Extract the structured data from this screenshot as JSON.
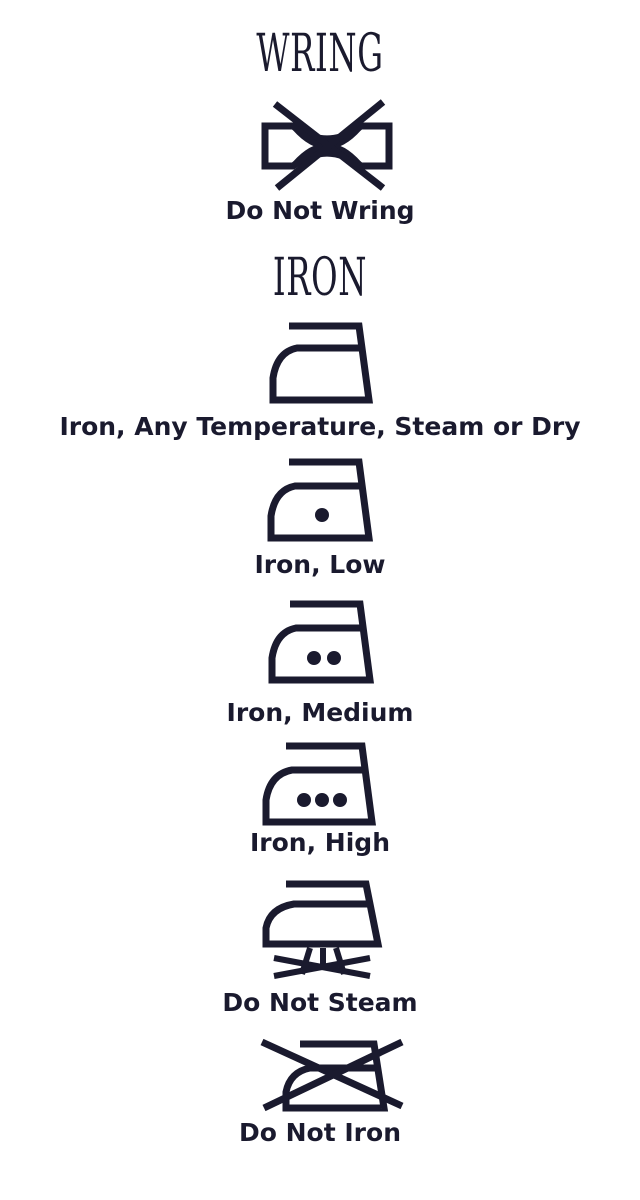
{
  "sections": {
    "wring": {
      "heading": "WRING",
      "items": [
        {
          "icon": "do-not-wring-icon",
          "label": "Do Not Wring"
        }
      ]
    },
    "iron": {
      "heading": "IRON",
      "items": [
        {
          "icon": "iron-any-temperature-icon",
          "label": "Iron, Any Temperature, Steam or Dry"
        },
        {
          "icon": "iron-low-icon",
          "label": "Iron, Low"
        },
        {
          "icon": "iron-medium-icon",
          "label": "Iron, Medium"
        },
        {
          "icon": "iron-high-icon",
          "label": "Iron, High"
        },
        {
          "icon": "do-not-steam-icon",
          "label": "Do Not Steam"
        },
        {
          "icon": "do-not-iron-icon",
          "label": "Do Not Iron"
        }
      ]
    }
  },
  "colors": {
    "ink": "#1a1a2e",
    "background": "#ffffff"
  }
}
